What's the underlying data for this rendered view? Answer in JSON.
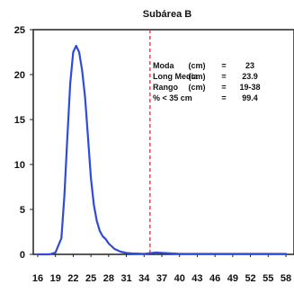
{
  "chart_data": {
    "type": "line",
    "title": "Subárea B",
    "xlabel": "",
    "ylabel": "",
    "xlim": [
      16,
      58
    ],
    "ylim": [
      0,
      25
    ],
    "x_ticks": [
      16,
      19,
      22,
      25,
      28,
      31,
      34,
      37,
      40,
      43,
      46,
      49,
      52,
      55,
      58
    ],
    "y_ticks": [
      0,
      5,
      10,
      15,
      20,
      25
    ],
    "grid": false,
    "series": [
      {
        "color": "#2f4bd8",
        "x": [
          16,
          17,
          18,
          19,
          20,
          20.5,
          21,
          21.5,
          22,
          22.5,
          23,
          23.5,
          24,
          24.5,
          25,
          25.5,
          26,
          26.5,
          27,
          27.5,
          28,
          29,
          30,
          31,
          32,
          34,
          36,
          40,
          45,
          50,
          55,
          58
        ],
        "y": [
          0,
          0,
          0,
          0.2,
          1.8,
          6.5,
          13,
          19,
          22.5,
          23.2,
          22.5,
          20.5,
          17.5,
          13,
          8.5,
          5.5,
          3.7,
          2.6,
          2.0,
          1.7,
          1.2,
          0.6,
          0.3,
          0.15,
          0.1,
          0.05,
          0.2,
          0.05,
          0.05,
          0.05,
          0.05,
          0.05
        ]
      }
    ],
    "reference_line": {
      "x": 35,
      "color": "#d4343a",
      "style": "dashed"
    },
    "annotations": [
      {
        "label": "Moda",
        "unit": "(cm)",
        "eq": "=",
        "value": "23"
      },
      {
        "label": "Long Media",
        "unit": "(cm)",
        "eq": "=",
        "value": "23.9"
      },
      {
        "label": "Rango",
        "unit": "(cm)",
        "eq": "=",
        "value": "19-38"
      },
      {
        "label": "% < 35 cm",
        "unit": "",
        "eq": "=",
        "value": "99.4"
      }
    ]
  }
}
